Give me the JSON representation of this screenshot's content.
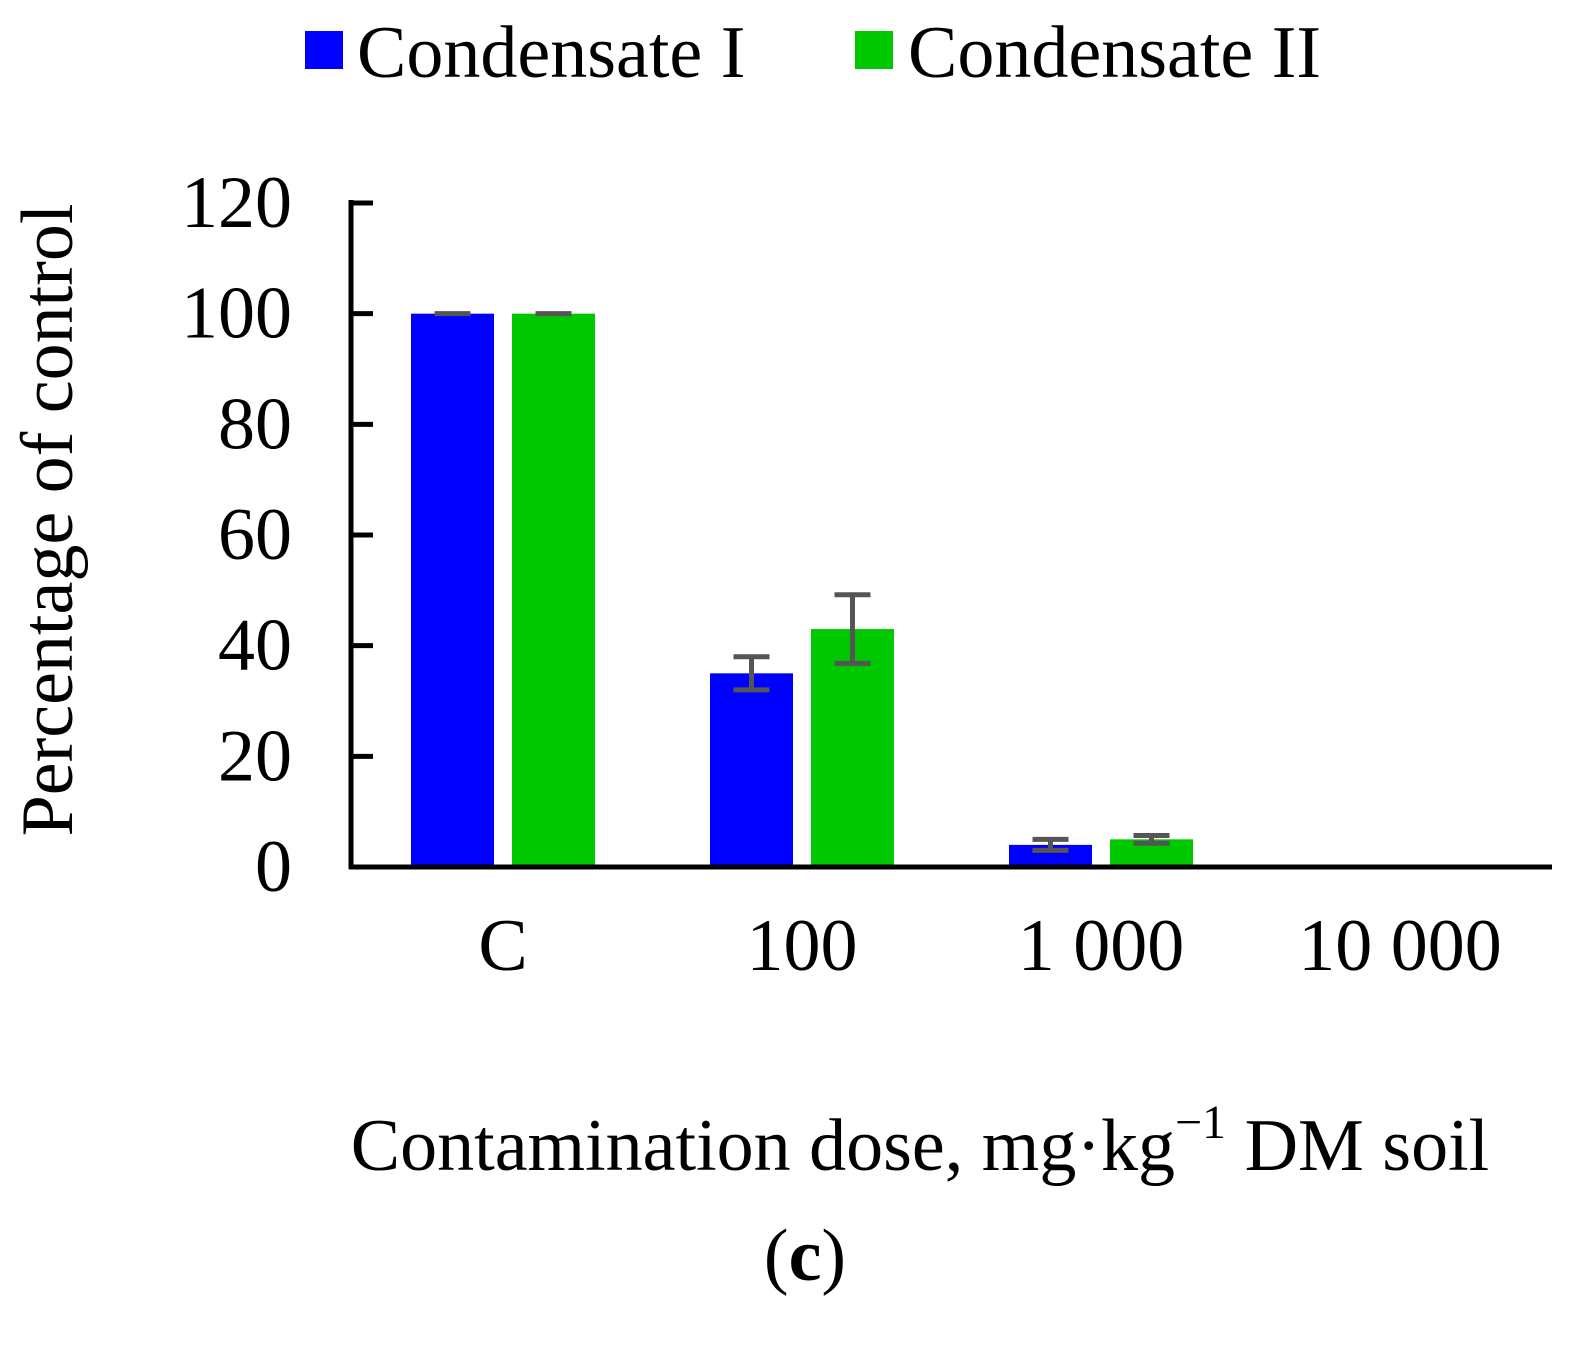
{
  "chart_data": {
    "type": "bar",
    "title": "",
    "categories": [
      "C",
      "100",
      "1 000",
      "10 000"
    ],
    "series": [
      {
        "name": "Condensate I",
        "color": "#0000ff",
        "values": [
          100,
          35,
          4,
          0.2
        ],
        "errors": [
          0,
          3,
          1,
          0
        ]
      },
      {
        "name": "Condensate II",
        "color": "#00c800",
        "values": [
          100,
          43,
          5,
          0.2
        ],
        "errors": [
          0,
          6.2,
          0.7,
          0
        ]
      }
    ],
    "xlabel": {
      "main": "Contamination dose, mg·kg",
      "superscript": "−1",
      "suffix": " DM soil"
    },
    "ylabel": "Percentage of control",
    "ylim": [
      0,
      120
    ],
    "yticks": [
      0,
      20,
      40,
      60,
      80,
      100,
      120
    ],
    "legend_position": "top-center",
    "grid": false,
    "panel_label": {
      "open": "(",
      "letter": "c",
      "close": ")"
    },
    "errorbar_color": "#555555",
    "axis_color": "#000000"
  }
}
